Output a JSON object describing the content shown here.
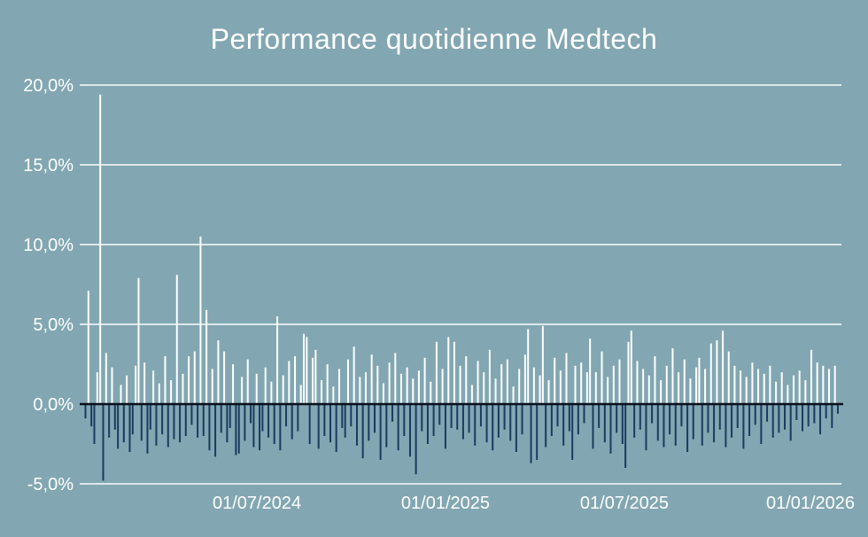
{
  "chart_data": {
    "type": "bar",
    "title": "Performance quotidienne Medtech",
    "xlabel": "",
    "ylabel": "",
    "unit": "%",
    "decimal_style": "comma",
    "ylim": [
      -5,
      20
    ],
    "grid": "horizontal",
    "legend": "none",
    "y_ticks": [
      {
        "value": 20,
        "label": "20,0%"
      },
      {
        "value": 15,
        "label": "15,0%"
      },
      {
        "value": 10,
        "label": "10,0%"
      },
      {
        "value": 5,
        "label": "5,0%"
      },
      {
        "value": 0,
        "label": "0,0%"
      },
      {
        "value": -5,
        "label": "-5,0%"
      }
    ],
    "x_ticks": [
      {
        "pos": 0.2326,
        "label": "01/07/2024"
      },
      {
        "pos": 0.4802,
        "label": "01/01/2025"
      },
      {
        "pos": 0.7151,
        "label": "01/07/2025"
      },
      {
        "pos": 0.9593,
        "label": "01/01/2026"
      }
    ],
    "colors": {
      "background": "#82a7b2",
      "positive_bar": "#ffffff",
      "negative_bar": "#1c3a5f",
      "grid_line": "#fbfdfd",
      "zero_line": "#0a0f1c",
      "text": "#ffffff"
    },
    "values": [
      -0.9,
      7.1,
      -1.4,
      -2.5,
      2.0,
      19.4,
      -4.8,
      3.2,
      -2.1,
      2.3,
      -1.6,
      -2.8,
      1.2,
      -2.4,
      1.8,
      -3.0,
      -1.9,
      2.4,
      7.9,
      -2.3,
      2.6,
      -3.1,
      -1.6,
      2.1,
      -2.6,
      1.3,
      -1.9,
      3.0,
      -2.7,
      1.5,
      -2.2,
      8.1,
      -2.4,
      1.9,
      -2.0,
      3.0,
      -1.3,
      3.3,
      -2.1,
      10.5,
      -2.0,
      5.9,
      -2.9,
      2.2,
      -3.3,
      4.0,
      -1.8,
      3.3,
      -2.4,
      -1.5,
      2.5,
      -3.2,
      -3.1,
      1.7,
      -2.3,
      2.8,
      -1.2,
      -2.7,
      1.9,
      -2.9,
      -1.7,
      2.3,
      -2.1,
      1.4,
      -2.5,
      5.5,
      -2.9,
      1.8,
      -1.4,
      2.7,
      -2.2,
      3.0,
      -1.7,
      1.2,
      4.4,
      4.2,
      -2.5,
      2.9,
      3.4,
      -2.8,
      1.5,
      -2.0,
      2.5,
      -2.4,
      1.1,
      -3.0,
      2.2,
      -1.5,
      -2.1,
      2.8,
      -1.4,
      3.6,
      -2.6,
      1.7,
      -3.4,
      2.0,
      -2.3,
      3.1,
      -1.8,
      2.4,
      -3.5,
      1.3,
      -2.7,
      2.6,
      -1.1,
      3.2,
      -2.9,
      1.9,
      -2.0,
      2.3,
      -3.3,
      1.6,
      -4.4,
      2.1,
      -1.7,
      2.9,
      -2.5,
      1.4,
      -2.0,
      3.9,
      -1.3,
      2.2,
      -2.8,
      4.2,
      -1.5,
      3.9,
      -1.6,
      2.4,
      -2.2,
      3.0,
      -1.8,
      1.2,
      -2.6,
      2.7,
      -1.4,
      2.0,
      -2.4,
      3.4,
      -2.9,
      1.6,
      -2.1,
      2.5,
      -1.6,
      2.8,
      -2.3,
      1.1,
      -3.0,
      2.2,
      -1.9,
      3.1,
      4.7,
      -3.7,
      2.3,
      -3.5,
      1.8,
      4.9,
      -2.7,
      1.5,
      -2.0,
      2.9,
      -1.4,
      2.1,
      -2.6,
      3.2,
      -1.7,
      -3.5,
      2.4,
      -1.9,
      2.6,
      -1.2,
      2.0,
      4.1,
      -2.8,
      2.0,
      -1.5,
      3.3,
      -2.4,
      1.7,
      -3.1,
      2.4,
      -1.8,
      2.8,
      -2.5,
      -4.0,
      3.9,
      4.6,
      -2.1,
      2.7,
      -1.6,
      2.2,
      -2.9,
      1.8,
      -1.2,
      3.0,
      -2.3,
      1.5,
      -2.7,
      2.4,
      -1.9,
      3.5,
      -2.6,
      2.0,
      -1.4,
      2.8,
      -3.0,
      1.6,
      -2.2,
      2.3,
      2.9,
      -2.6,
      2.2,
      -1.8,
      3.8,
      -2.4,
      4.0,
      -1.6,
      4.6,
      -2.7,
      3.3,
      -2.1,
      2.4,
      -1.5,
      2.1,
      -2.8,
      1.7,
      -2.0,
      2.6,
      -1.3,
      2.2,
      -2.5,
      1.9,
      -1.1,
      2.4,
      -2.1,
      1.4,
      -1.8,
      2.0,
      -1.6,
      1.2,
      -2.3,
      1.8,
      -1.0,
      2.1,
      -1.7,
      1.5,
      -1.4,
      3.4,
      -1.2,
      2.6,
      -1.9,
      2.4,
      -0.9,
      2.2,
      -1.5,
      2.4,
      -0.6
    ]
  }
}
